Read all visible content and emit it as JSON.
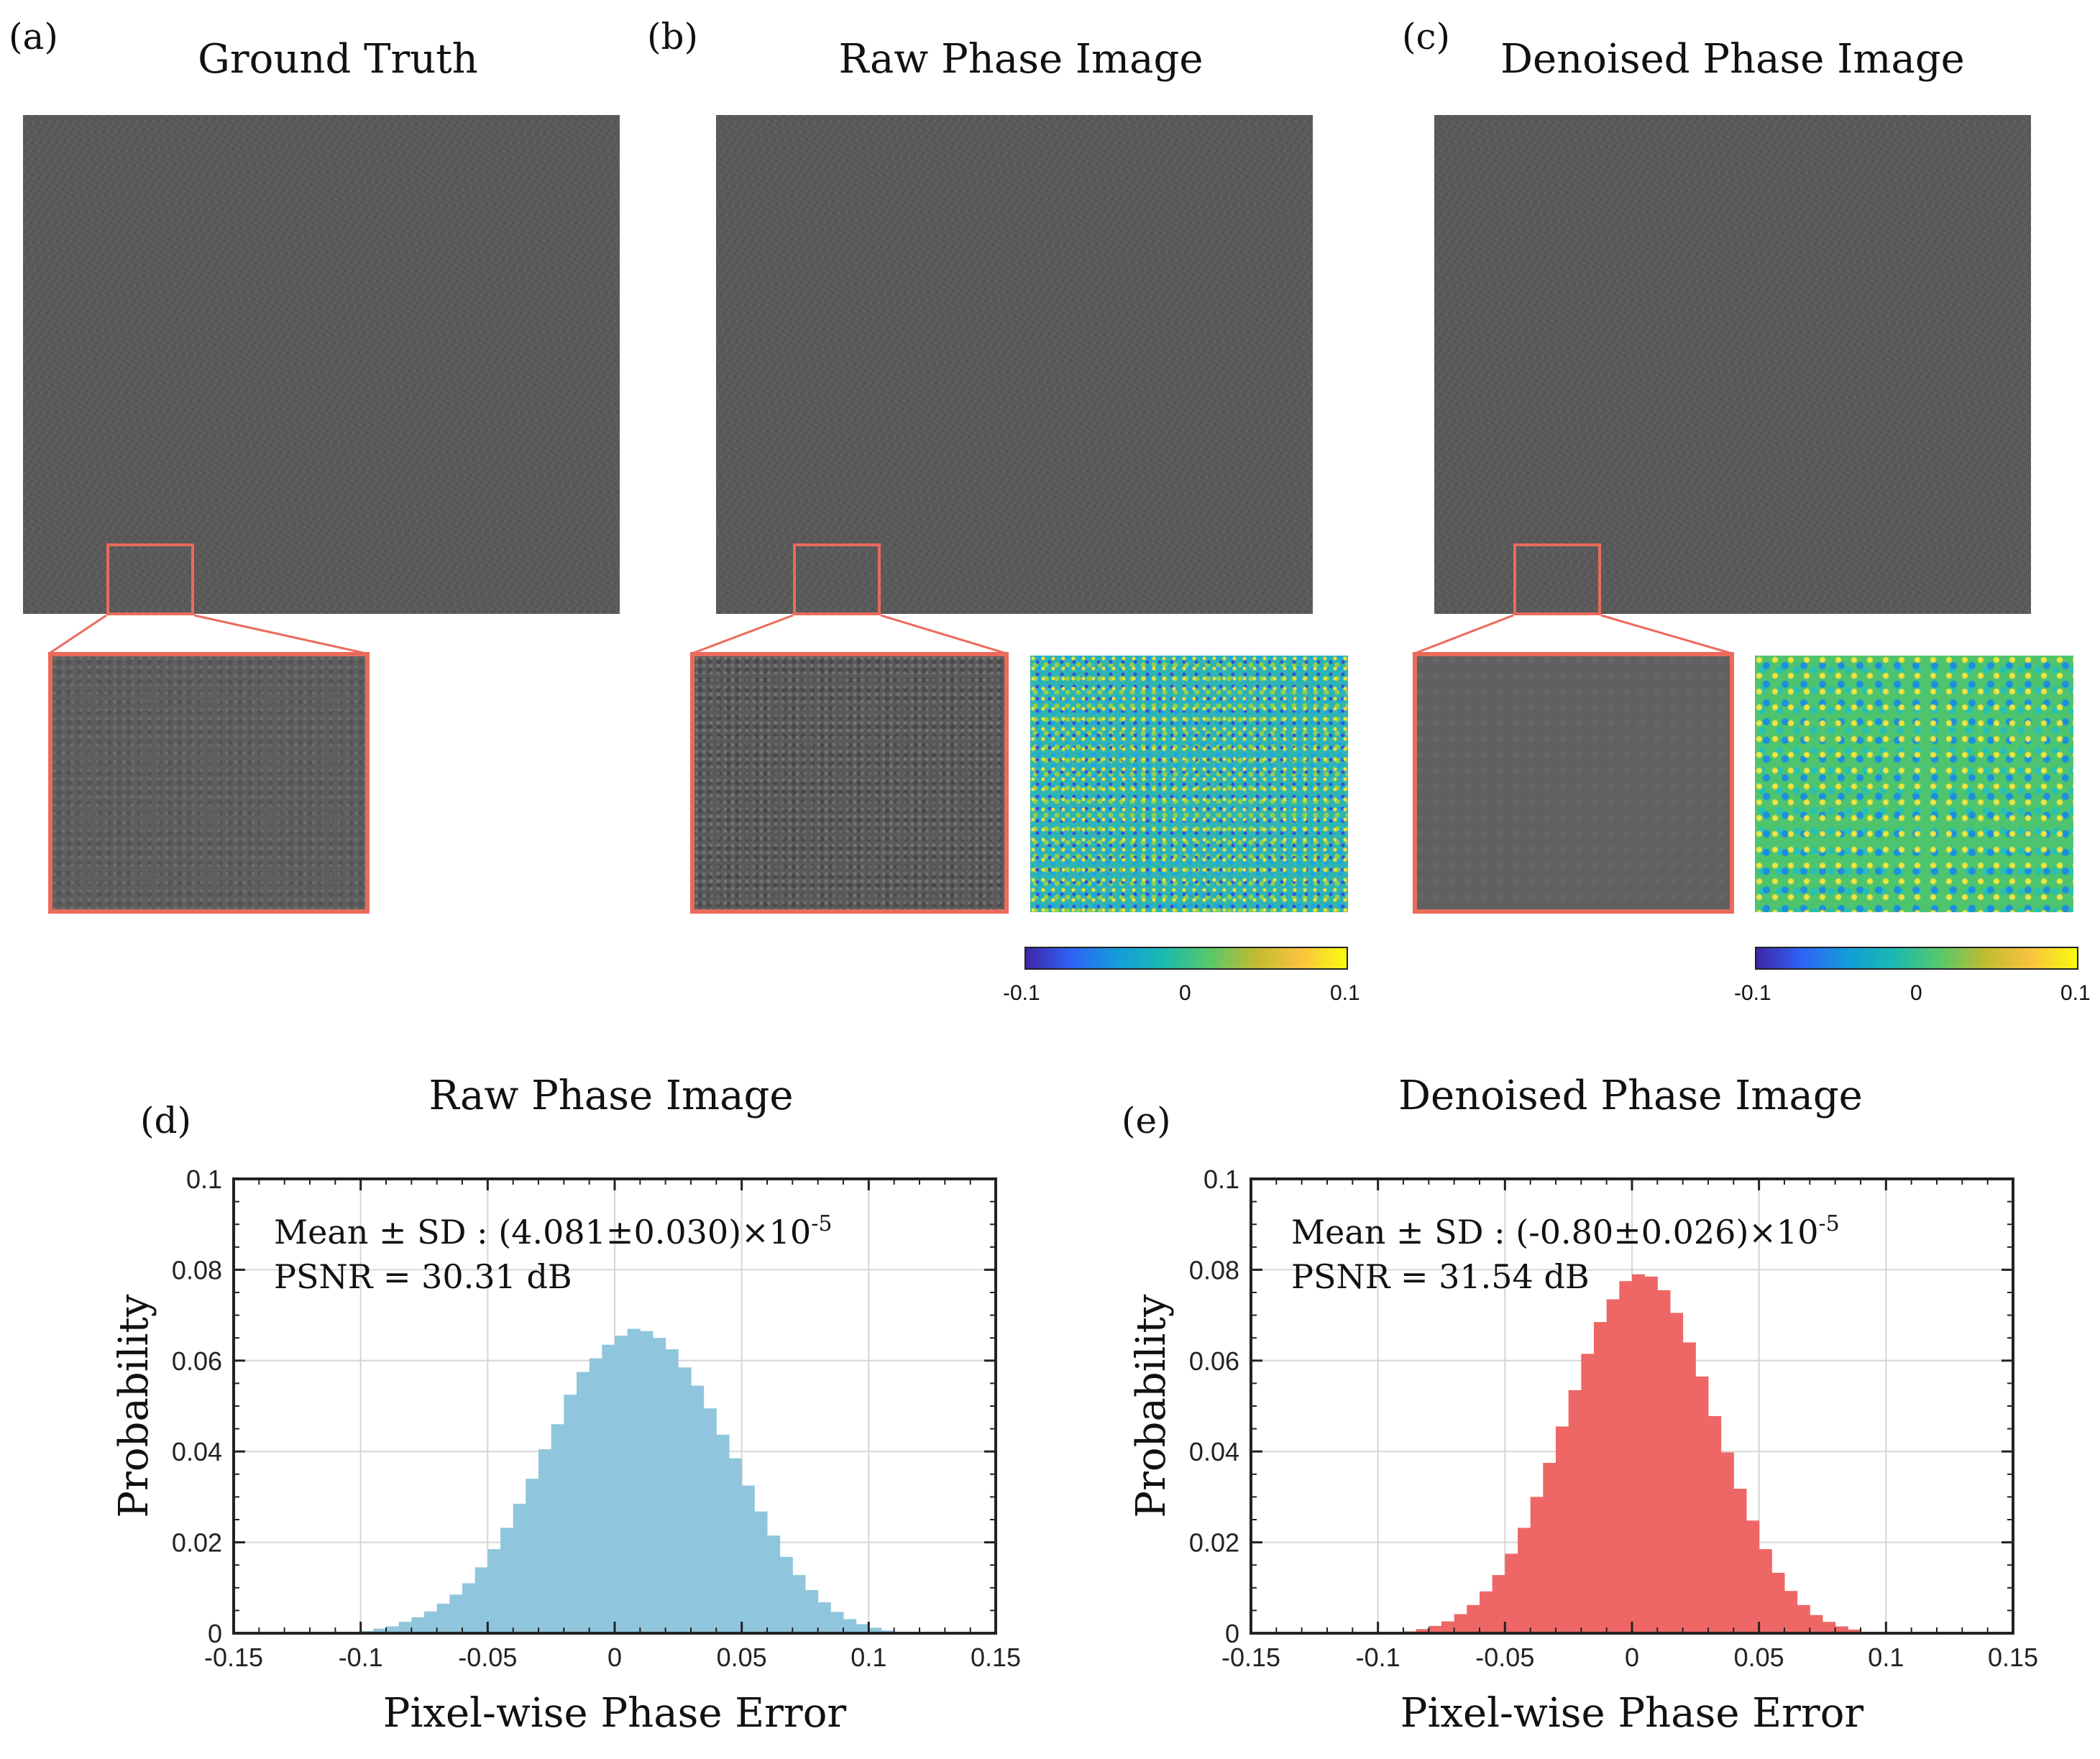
{
  "panels": {
    "a": {
      "letter": "(a)",
      "title": "Ground Truth"
    },
    "b": {
      "letter": "(b)",
      "title": "Raw Phase Image"
    },
    "c": {
      "letter": "(c)",
      "title": "Denoised Phase Image"
    },
    "d": {
      "letter": "(d)"
    },
    "e": {
      "letter": "(e)"
    }
  },
  "colorbar": {
    "ticks": [
      "-0.1",
      "0",
      "0.1"
    ]
  },
  "colors": {
    "roi": "#ec6a5a",
    "raw_bar": "#8fc6dd",
    "den_bar": "#ef6666"
  },
  "chart_data": [
    {
      "type": "bar",
      "title": "Raw Phase Image",
      "xlabel": "Pixel-wise Phase Error",
      "ylabel": "Probability",
      "xlim": [
        -0.15,
        0.15
      ],
      "ylim": [
        0,
        0.1
      ],
      "xticks": [
        "-0.15",
        "-0.1",
        "-0.05",
        "0",
        "0.05",
        "0.1",
        "0.15"
      ],
      "yticks": [
        "0",
        "0.02",
        "0.04",
        "0.06",
        "0.08",
        "0.1"
      ],
      "annotation": {
        "mean_sd": "Mean ± SD : (4.081±0.030)×10",
        "exponent": "-5",
        "psnr": "PSNR = 30.31 dB"
      },
      "bin_width": 0.005,
      "bin_start": -0.1,
      "values": [
        0.0005,
        0.001,
        0.0015,
        0.0025,
        0.0035,
        0.0048,
        0.0065,
        0.0085,
        0.011,
        0.0145,
        0.0185,
        0.0232,
        0.0285,
        0.034,
        0.0405,
        0.046,
        0.0525,
        0.0575,
        0.0605,
        0.0635,
        0.0655,
        0.067,
        0.0665,
        0.065,
        0.0625,
        0.0585,
        0.0545,
        0.0495,
        0.0437,
        0.0385,
        0.0325,
        0.0268,
        0.0215,
        0.0168,
        0.0128,
        0.0095,
        0.0068,
        0.0047,
        0.0031,
        0.002,
        0.0012,
        0.0006
      ]
    },
    {
      "type": "bar",
      "title": "Denoised Phase Image",
      "xlabel": "Pixel-wise Phase Error",
      "ylabel": "Probability",
      "xlim": [
        -0.15,
        0.15
      ],
      "ylim": [
        0,
        0.1
      ],
      "xticks": [
        "-0.15",
        "-0.1",
        "-0.05",
        "0",
        "0.05",
        "0.1",
        "0.15"
      ],
      "yticks": [
        "0",
        "0.02",
        "0.04",
        "0.06",
        "0.08",
        "0.1"
      ],
      "annotation": {
        "mean_sd": "Mean ± SD : (-0.80±0.026)×10",
        "exponent": "-5",
        "psnr": "PSNR = 31.54 dB"
      },
      "bin_width": 0.005,
      "bin_start": -0.09,
      "values": [
        0.0004,
        0.0009,
        0.0016,
        0.0026,
        0.0042,
        0.0062,
        0.0092,
        0.0128,
        0.0175,
        0.0232,
        0.03,
        0.0375,
        0.0455,
        0.0535,
        0.0615,
        0.0685,
        0.0735,
        0.0775,
        0.079,
        0.0785,
        0.0755,
        0.0705,
        0.064,
        0.0565,
        0.0478,
        0.0398,
        0.0318,
        0.0248,
        0.0185,
        0.0133,
        0.0093,
        0.0062,
        0.004,
        0.0025,
        0.0015,
        0.0008
      ]
    }
  ]
}
